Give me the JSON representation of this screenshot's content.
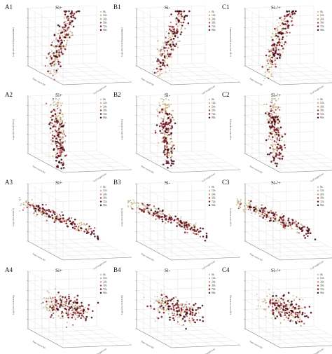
{
  "figure": {
    "legend_items": [
      "0h",
      "12h",
      "24h",
      "36h",
      "72h",
      "96h"
    ],
    "series_colors": [
      "#c9c9b4",
      "#c9b48f",
      "#c8a053",
      "#a6394a",
      "#7a0f22",
      "#3d0612"
    ],
    "axis_label_texts": {
      "z_panel1": "Log2 (Sox Soil-ExpressionMax)",
      "z_panel2": "Log2 (Sox Soil-FW/Q)",
      "z_panel3": "Log2 (Sox Soil-TE)",
      "z_panel4": "Log2 (Sox Soil-SOQ)",
      "x": "Time course (h)",
      "y": "Leaf length (cm)"
    }
  },
  "chart_data": [
    {
      "panel": "A1",
      "title": "Si+",
      "type": "scatter",
      "row": 1,
      "pattern": "rising",
      "series": [
        "0h",
        "12h",
        "24h",
        "36h",
        "72h",
        "96h"
      ]
    },
    {
      "panel": "B1",
      "title": "Si-",
      "type": "scatter",
      "row": 1,
      "pattern": "rising",
      "series": [
        "0h",
        "12h",
        "24h",
        "36h",
        "72h",
        "96h"
      ]
    },
    {
      "panel": "C1",
      "title": "Si-/+",
      "type": "scatter",
      "row": 1,
      "pattern": "rising",
      "series": [
        "0h",
        "12h",
        "24h",
        "36h",
        "72h",
        "96h"
      ]
    },
    {
      "panel": "A2",
      "title": "Si+",
      "type": "scatter",
      "row": 2,
      "pattern": "vertical",
      "series": [
        "0h",
        "12h",
        "24h",
        "36h",
        "72h",
        "96h"
      ]
    },
    {
      "panel": "B2",
      "title": "Si-",
      "type": "scatter",
      "row": 2,
      "pattern": "vertical",
      "series": [
        "0h",
        "12h",
        "24h",
        "36h",
        "72h",
        "96h"
      ]
    },
    {
      "panel": "C2",
      "title": "Si-/+",
      "type": "scatter",
      "row": 2,
      "pattern": "vertical",
      "series": [
        "0h",
        "12h",
        "24h",
        "36h",
        "72h",
        "96h"
      ]
    },
    {
      "panel": "A3",
      "title": "Si+",
      "type": "scatter",
      "row": 3,
      "pattern": "falling",
      "series": [
        "0h",
        "12h",
        "24h",
        "36h",
        "72h",
        "96h"
      ]
    },
    {
      "panel": "B3",
      "title": "Si-",
      "type": "scatter",
      "row": 3,
      "pattern": "falling",
      "series": [
        "0h",
        "12h",
        "24h",
        "36h",
        "72h",
        "96h"
      ]
    },
    {
      "panel": "C3",
      "title": "Si-/+",
      "type": "scatter",
      "row": 3,
      "pattern": "falling",
      "series": [
        "0h",
        "12h",
        "24h",
        "36h",
        "72h",
        "96h"
      ]
    },
    {
      "panel": "A4",
      "title": "Si+",
      "type": "scatter",
      "row": 4,
      "pattern": "cluster",
      "series": [
        "0h",
        "12h",
        "24h",
        "36h",
        "72h",
        "96h"
      ]
    },
    {
      "panel": "B4",
      "title": "Si-",
      "type": "scatter",
      "row": 4,
      "pattern": "cluster",
      "series": [
        "0h",
        "12h",
        "24h",
        "36h",
        "72h",
        "96h"
      ]
    },
    {
      "panel": "C4",
      "title": "Si-/+",
      "type": "scatter",
      "row": 4,
      "pattern": "cluster",
      "series": [
        "0h",
        "12h",
        "24h",
        "36h",
        "72h",
        "96h"
      ]
    }
  ]
}
